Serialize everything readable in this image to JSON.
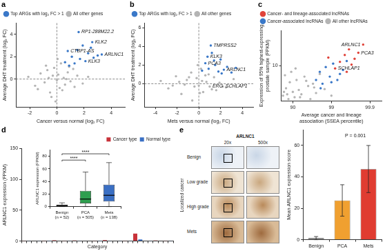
{
  "chart_data": [
    {
      "type": "scatter",
      "title": "a",
      "x_label": "Cancer versus normal (log₂ FC)",
      "y_label": "Average DHT treatment (log₂ FC)",
      "xlim": [
        -3,
        5
      ],
      "ylim": [
        -2.5,
        5
      ],
      "xticks": [
        -2,
        0,
        2,
        4
      ],
      "yticks": [
        0,
        2,
        4
      ],
      "grid": false,
      "legend": "top-left",
      "series": [
        {
          "name": "Top ARGs with log₂ FC > 1",
          "color": "#3a78c8",
          "x": [
            0.6,
            0.9,
            1.1,
            1.3,
            1.5,
            1.7,
            1.9,
            2.1,
            2.3,
            2.5,
            2.7,
            3.0,
            3.3,
            1.6,
            2.6,
            0.8
          ],
          "y": [
            1.5,
            1.2,
            2.0,
            1.4,
            2.6,
            1.8,
            3.0,
            1.6,
            2.3,
            2.8,
            1.9,
            2.1,
            2.2,
            4.2,
            3.3,
            2.5
          ]
        },
        {
          "name": "All other genes",
          "color": "#b4b4b4",
          "x": [
            -2.1,
            -1.6,
            -1.2,
            -0.9,
            -0.7,
            -0.5,
            -0.3,
            -0.2,
            0,
            0.1,
            0.2,
            0.3,
            0.5,
            0.6,
            0.8,
            1.0,
            1.2,
            1.5,
            1.9,
            2.3,
            -0.4,
            0.4,
            -0.8,
            0.9,
            -1.4,
            1.3,
            0.05,
            -0.1,
            0.7,
            -0.6
          ],
          "y": [
            0.2,
            -0.6,
            0.5,
            -0.3,
            0.8,
            -1.2,
            0.3,
            1.0,
            -0.1,
            0.4,
            -0.8,
            1.4,
            0.1,
            -0.5,
            0.6,
            -0.2,
            0.9,
            0.3,
            -0.4,
            0.2,
            -1.6,
            -1.0,
            1.2,
            1.1,
            -0.9,
            -0.7,
            1.8,
            -2.0,
            0,
            0.1
          ]
        }
      ],
      "annotations": [
        {
          "x": 1.6,
          "y": 4.2,
          "text": "RP1-288M22.2"
        },
        {
          "x": 2.6,
          "y": 3.3,
          "text": "KLK2"
        },
        {
          "x": 0.8,
          "y": 2.5,
          "text": "CTBP1-AS"
        },
        {
          "x": 2.1,
          "y": 1.6,
          "text": "KLK3"
        },
        {
          "x": 3.3,
          "y": 2.2,
          "text": "ARLNC1"
        }
      ]
    },
    {
      "type": "scatter",
      "title": "b",
      "x_label": "Mets versus normal (log₂ FC)",
      "y_label": "Average DHT treatment (log₂ FC)",
      "xlim": [
        -5,
        5
      ],
      "ylim": [
        -2.5,
        6.5
      ],
      "xticks": [
        -4,
        -2,
        0,
        2,
        4
      ],
      "yticks": [
        0,
        2,
        4,
        6
      ],
      "grid": false,
      "legend": "top-left",
      "series": [
        {
          "name": "Top ARGs with log₂ FC > 1",
          "color": "#3a78c8",
          "x": [
            0.3,
            0.6,
            0.9,
            1.2,
            1.5,
            1.8,
            2.0,
            2.3,
            2.6,
            3.0,
            3.4,
            1.1,
            0.8,
            1.4,
            2.1
          ],
          "y": [
            1.4,
            2.2,
            1.6,
            3.3,
            2.0,
            1.3,
            2.6,
            1.5,
            1.8,
            1.2,
            1.7,
            4.1,
            2.9,
            2.5,
            1.1
          ]
        },
        {
          "name": "All other genes",
          "color": "#b4b4b4",
          "x": [
            -3.5,
            -2.8,
            -2.1,
            -1.6,
            -1.1,
            -0.7,
            -0.4,
            -0.2,
            0,
            0.2,
            0.4,
            0.7,
            1.0,
            1.4,
            1.9,
            2.5,
            3.2,
            -1.3,
            0.9,
            -0.6,
            0.3,
            -2.4,
            1.6,
            -0.1,
            0.6,
            2.2,
            -1.8,
            1.2,
            -0.9,
            0.1
          ],
          "y": [
            0.3,
            -0.5,
            0.8,
            -1.1,
            0.4,
            1.2,
            -0.3,
            0.6,
            -0.2,
            1.6,
            -0.9,
            0.2,
            -0.3,
            0.7,
            0.1,
            -0.4,
            0.5,
            -0.1,
            1.0,
            -1.8,
            0.3,
            -0.2,
            -0.7,
            2.0,
            0.9,
            -0.3,
            0.2,
            -0.6,
            0.7,
            -1.0
          ]
        }
      ],
      "annotations": [
        {
          "x": 1.1,
          "y": 4.1,
          "text": "TMPRSS2"
        },
        {
          "x": 0.8,
          "y": 2.9,
          "text": "KLK3"
        },
        {
          "x": 0.6,
          "y": 2.2,
          "text": "PCA3"
        },
        {
          "x": 2.3,
          "y": 1.5,
          "text": "ARLNC1"
        },
        {
          "x": 1.0,
          "y": -0.3,
          "text": "ERG"
        },
        {
          "x": 2.2,
          "y": -0.3,
          "text": "SCHLAP1"
        }
      ]
    },
    {
      "type": "scatter",
      "title": "c",
      "x_label": "Average cancer and lineage association (SSEA percentile)",
      "y_label": "Expression of 95% highest-expressing prostate sample (FPKM)",
      "xlim": [
        80,
        99.95
      ],
      "ylim": [
        0.5,
        200
      ],
      "xticks": [
        90,
        99,
        99.9
      ],
      "yticks": [
        10
      ],
      "log": "y",
      "grid": false,
      "legend": "top-left",
      "series": [
        {
          "name": "Cancer- and lineage-associated lncRNAs",
          "color": "#e0433a",
          "x": [
            98.8,
            99.2,
            99.4,
            99.55,
            99.65,
            99.7,
            99.75,
            99.8,
            99.85,
            99.6
          ],
          "y": [
            20,
            8,
            14,
            25,
            40,
            11,
            18,
            30,
            60,
            6
          ]
        },
        {
          "name": "Cancer-associated lncRNAs",
          "color": "#3a78c8",
          "x": [
            97.5,
            98,
            98.3,
            98.6,
            98.9,
            99.1,
            99.3,
            99.5,
            99.6,
            98.1,
            99.0,
            99.4
          ],
          "y": [
            3.0,
            6,
            2.2,
            9,
            4,
            12,
            3,
            7,
            15,
            1.5,
            2.5,
            5
          ]
        },
        {
          "name": "All other lncRNAs",
          "color": "#b4b4b4",
          "x": [
            82,
            85,
            87,
            88,
            90,
            91,
            92,
            93,
            94,
            95,
            96,
            96.5,
            97,
            97.5,
            98,
            98.5,
            99,
            84,
            89,
            93.5,
            95.5,
            97.2,
            83,
            91.5,
            86
          ],
          "y": [
            0.8,
            1.5,
            0.6,
            2.5,
            1.1,
            0.7,
            3.0,
            1.3,
            0.9,
            4.0,
            1.8,
            0.6,
            2.2,
            1.0,
            5.0,
            1.4,
            0.8,
            4.5,
            6.0,
            0.7,
            2.8,
            1.6,
            1.1,
            8.0,
            0.9
          ]
        }
      ],
      "annotations": [
        {
          "x": 99.85,
          "y": 60,
          "text": "ARLNC1"
        },
        {
          "x": 99.8,
          "y": 30,
          "text": "PCA3"
        },
        {
          "x": 99.2,
          "y": 8,
          "text": "SCHLAP1"
        }
      ]
    },
    {
      "type": "bar",
      "title": "d",
      "x_label": "Category",
      "y_label": "ARLNC1 expression (FPKM)",
      "stacked": true,
      "legend": "top-right",
      "tick_labels": "y",
      "grid": false,
      "ylim": [
        0,
        150
      ],
      "yticks": [
        0,
        50,
        100,
        150
      ],
      "categories": [
        null,
        null,
        null,
        null,
        null,
        null,
        null,
        null,
        null,
        null,
        null,
        null,
        null,
        null,
        null,
        null,
        null,
        null,
        null,
        null,
        null,
        null,
        null,
        null,
        null,
        null,
        null,
        null,
        null,
        null
      ],
      "series": [
        {
          "name": "Cancer type",
          "color": "#c8323a",
          "values": [
            0.4,
            null,
            0.8,
            null,
            0.3,
            null,
            1.2,
            null,
            0.5,
            null,
            0.9,
            null,
            0.6,
            null,
            0.4,
            null,
            1.5,
            null,
            0.7,
            null,
            0.5,
            null,
            12,
            null,
            0.6,
            null,
            0.9,
            null,
            0.4,
            null
          ]
        },
        {
          "name": "Normal type",
          "color": "#3a6fc4",
          "values": [
            null,
            0.3,
            null,
            0.5,
            null,
            0.2,
            null,
            0.6,
            null,
            0.4,
            null,
            0.3,
            null,
            0.7,
            null,
            0.2,
            null,
            0.5,
            null,
            0.4,
            null,
            0.3,
            null,
            2.5,
            null,
            0.4,
            null,
            0.6,
            null,
            0.3
          ]
        }
      ]
    },
    {
      "type": "box",
      "y_label": "ARLNC1 expression (FPKM)",
      "categories": [
        "Benign (n = 52)",
        "PCA (n = 505)",
        "Mets (n = 138)"
      ],
      "min": [
        0,
        0,
        0
      ],
      "q1": [
        0.5,
        5,
        8
      ],
      "median": [
        1.5,
        12,
        18
      ],
      "q3": [
        3,
        25,
        35
      ],
      "max": [
        6,
        55,
        70
      ],
      "colors": [
        "#666666",
        "#2e9e4f",
        "#3a6fc4"
      ],
      "ylim": [
        0,
        90
      ],
      "yticks": [
        0,
        20,
        40,
        60,
        80
      ],
      "grid": false,
      "significance": [
        {
          "from": 0,
          "to": 1,
          "y": 74,
          "text": "****"
        },
        {
          "from": 0,
          "to": 2,
          "y": 84,
          "text": "****"
        }
      ]
    },
    {
      "type": "bar",
      "y_label": "Mean ARLNC1 expression score",
      "categories": [
        "Benign",
        "PCA",
        "Mets"
      ],
      "values": [
        1,
        25,
        45
      ],
      "errors": [
        1,
        10,
        15
      ],
      "colors": [
        "#9a9a9a",
        "#f0a030",
        "#e03c31"
      ],
      "ylim": [
        0,
        70
      ],
      "yticks": [
        0,
        20,
        40,
        60
      ],
      "grid": false,
      "annotations": [
        {
          "x": 1.5,
          "y": 66,
          "text": "P = 0.001"
        }
      ]
    }
  ],
  "ihc": {
    "title": "e",
    "stain": "ARLNC1",
    "magnifications": [
      "20x",
      "500x"
    ],
    "group": "Localized cancer",
    "rows": [
      "Benign",
      "Low grade",
      "High grade",
      "Mets"
    ]
  }
}
